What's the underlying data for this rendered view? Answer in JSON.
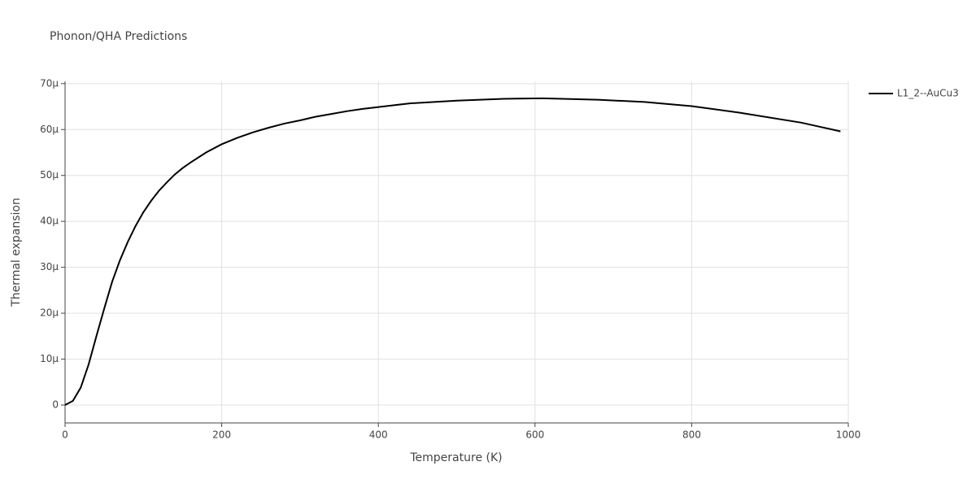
{
  "chart_data": {
    "type": "line",
    "title": "Phonon/QHA Predictions",
    "x_label": "Temperature (K)",
    "y_label": "Thermal expansion",
    "x": [
      0,
      10,
      20,
      30,
      40,
      50,
      60,
      70,
      80,
      90,
      100,
      110,
      120,
      130,
      140,
      150,
      160,
      180,
      200,
      220,
      240,
      260,
      280,
      300,
      320,
      340,
      360,
      380,
      400,
      440,
      500,
      560,
      610,
      680,
      740,
      800,
      860,
      940,
      990
    ],
    "series": [
      {
        "name": "L1_2--AuCu3",
        "color": "#000000",
        "values": [
          0,
          9e-07,
          3.8e-06,
          8.8e-06,
          1.5e-05,
          2.1e-05,
          2.68e-05,
          3.15e-05,
          3.55e-05,
          3.9e-05,
          4.2e-05,
          4.45e-05,
          4.67e-05,
          4.85e-05,
          5.02e-05,
          5.16e-05,
          5.28e-05,
          5.5e-05,
          5.68e-05,
          5.82e-05,
          5.94e-05,
          6.04e-05,
          6.13e-05,
          6.2e-05,
          6.28e-05,
          6.34e-05,
          6.4e-05,
          6.45e-05,
          6.49e-05,
          6.57e-05,
          6.63e-05,
          6.67e-05,
          6.68e-05,
          6.65e-05,
          6.6e-05,
          6.51e-05,
          6.37e-05,
          6.15e-05,
          5.96e-05
        ]
      }
    ],
    "xlim": [
      0,
      1000
    ],
    "xticks": [
      0,
      200,
      400,
      600,
      800,
      1000
    ],
    "ylim": [
      -3.9e-06,
      7.05e-05
    ],
    "yticks": [
      0,
      {
        "value": 1e-05,
        "label": "10μ"
      },
      {
        "value": 2e-05,
        "label": "20μ"
      },
      {
        "value": 3e-05,
        "label": "30μ"
      },
      {
        "value": 4e-05,
        "label": "40μ"
      },
      {
        "value": 5e-05,
        "label": "50μ"
      },
      {
        "value": 6e-05,
        "label": "60μ"
      },
      {
        "value": 7e-05,
        "label": "70μ"
      }
    ],
    "grid": true,
    "legend": "right"
  }
}
